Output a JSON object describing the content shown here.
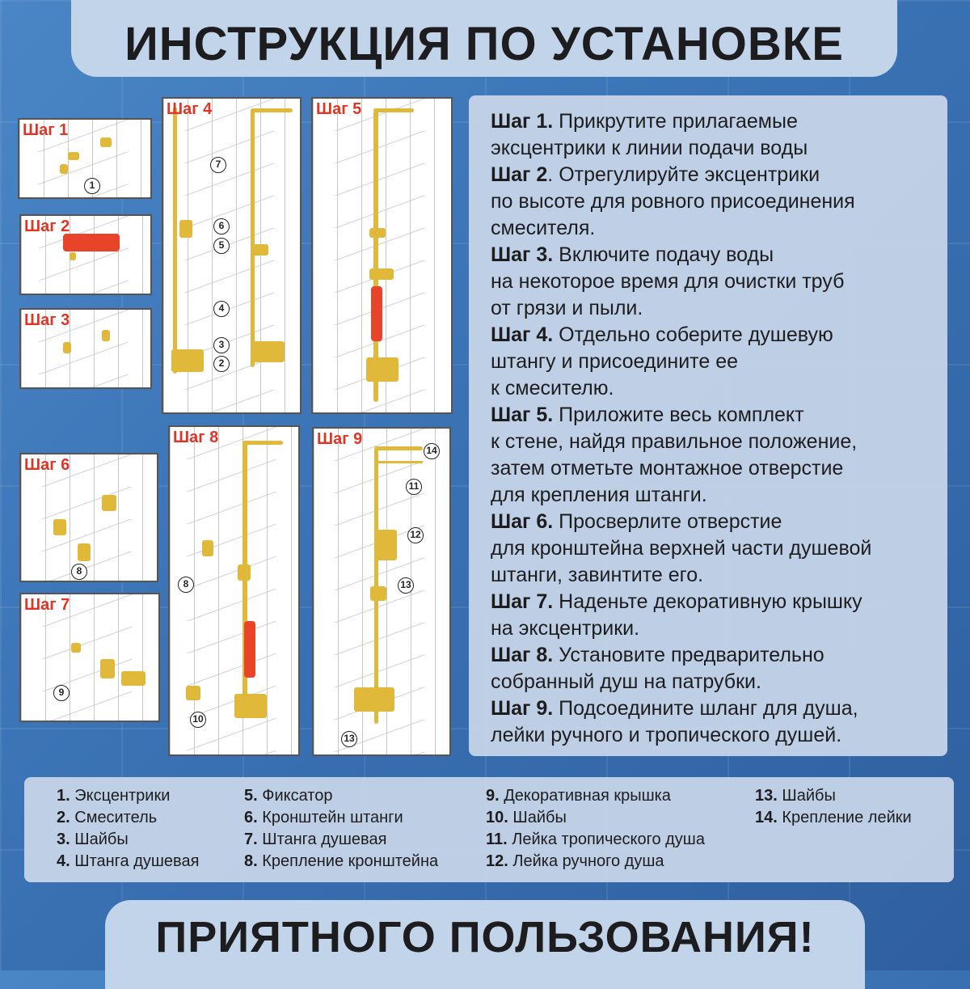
{
  "title": "ИНСТРУКЦИЯ ПО УСТАНОВКЕ",
  "footer": "ПРИЯТНОГО ПОЛЬЗОВАНИЯ!",
  "colors": {
    "background": "#3a72b4",
    "banner": "#c2d4ea",
    "step_label": "#e03525",
    "gold": "#e0b93a"
  },
  "panels": [
    {
      "label": "Шаг 1",
      "callouts": [
        "1"
      ]
    },
    {
      "label": "Шаг 2",
      "callouts": []
    },
    {
      "label": "Шаг 3",
      "callouts": []
    },
    {
      "label": "Шаг 4",
      "callouts": [
        "7",
        "6",
        "5",
        "4",
        "3",
        "2"
      ]
    },
    {
      "label": "Шаг 5",
      "callouts": []
    },
    {
      "label": "Шаг 6",
      "callouts": [
        "8"
      ]
    },
    {
      "label": "Шаг 7",
      "callouts": [
        "9"
      ]
    },
    {
      "label": "Шаг 8",
      "callouts": [
        "8",
        "10"
      ]
    },
    {
      "label": "Шаг 9",
      "callouts": [
        "14",
        "11",
        "12",
        "13",
        "13"
      ]
    }
  ],
  "steps": [
    {
      "label": "Шаг 1.",
      "text": " Прикрутите прилагаемые\nэксцентрики к линии подачи воды"
    },
    {
      "label": "Шаг 2",
      "text": ". Отрегулируйте эксцентрики\nпо высоте для ровного присоединения\nсмесителя."
    },
    {
      "label": "Шаг 3.",
      "text": " Включите подачу воды\nна некоторое время для очистки труб\nот грязи и пыли."
    },
    {
      "label": "Шаг 4.",
      "text": " Отдельно соберите душевую\nштангу и присоедините ее\nк смесителю."
    },
    {
      "label": "Шаг 5.",
      "text": " Приложите весь комплект\nк стене, найдя правильное положение,\nзатем отметьте монтажное отверстие\nдля крепления штанги."
    },
    {
      "label": "Шаг 6.",
      "text": " Просверлите отверстие\nдля кронштейна верхней части душевой\nштанги, завинтите его."
    },
    {
      "label": "Шаг 7.",
      "text": " Наденьте декоративную крышку\nна эксцентрики."
    },
    {
      "label": "Шаг 8.",
      "text": " Установите предварительно\nсобранный душ на патрубки."
    },
    {
      "label": "Шаг 9.",
      "text": " Подсоедините шланг для душа,\nлейки ручного и тропического душей."
    }
  ],
  "legend": [
    [
      {
        "n": "1.",
        "t": " Эксцентрики"
      },
      {
        "n": "2.",
        "t": " Смеситель"
      },
      {
        "n": "3.",
        "t": " Шайбы"
      },
      {
        "n": "4.",
        "t": " Штанга душевая"
      }
    ],
    [
      {
        "n": "5.",
        "t": " Фиксатор"
      },
      {
        "n": "6.",
        "t": " Кронштейн штанги"
      },
      {
        "n": "7.",
        "t": " Штанга душевая"
      },
      {
        "n": "8.",
        "t": " Крепление кронштейна"
      }
    ],
    [
      {
        "n": "9.",
        "t": " Декоративная крышка"
      },
      {
        "n": "10.",
        "t": " Шайбы"
      },
      {
        "n": "11.",
        "t": " Лейка тропического душа"
      },
      {
        "n": "12.",
        "t": " Лейка ручного душа"
      }
    ],
    [
      {
        "n": "13.",
        "t": " Шайбы"
      },
      {
        "n": "14.",
        "t": " Крепление лейки"
      }
    ]
  ]
}
